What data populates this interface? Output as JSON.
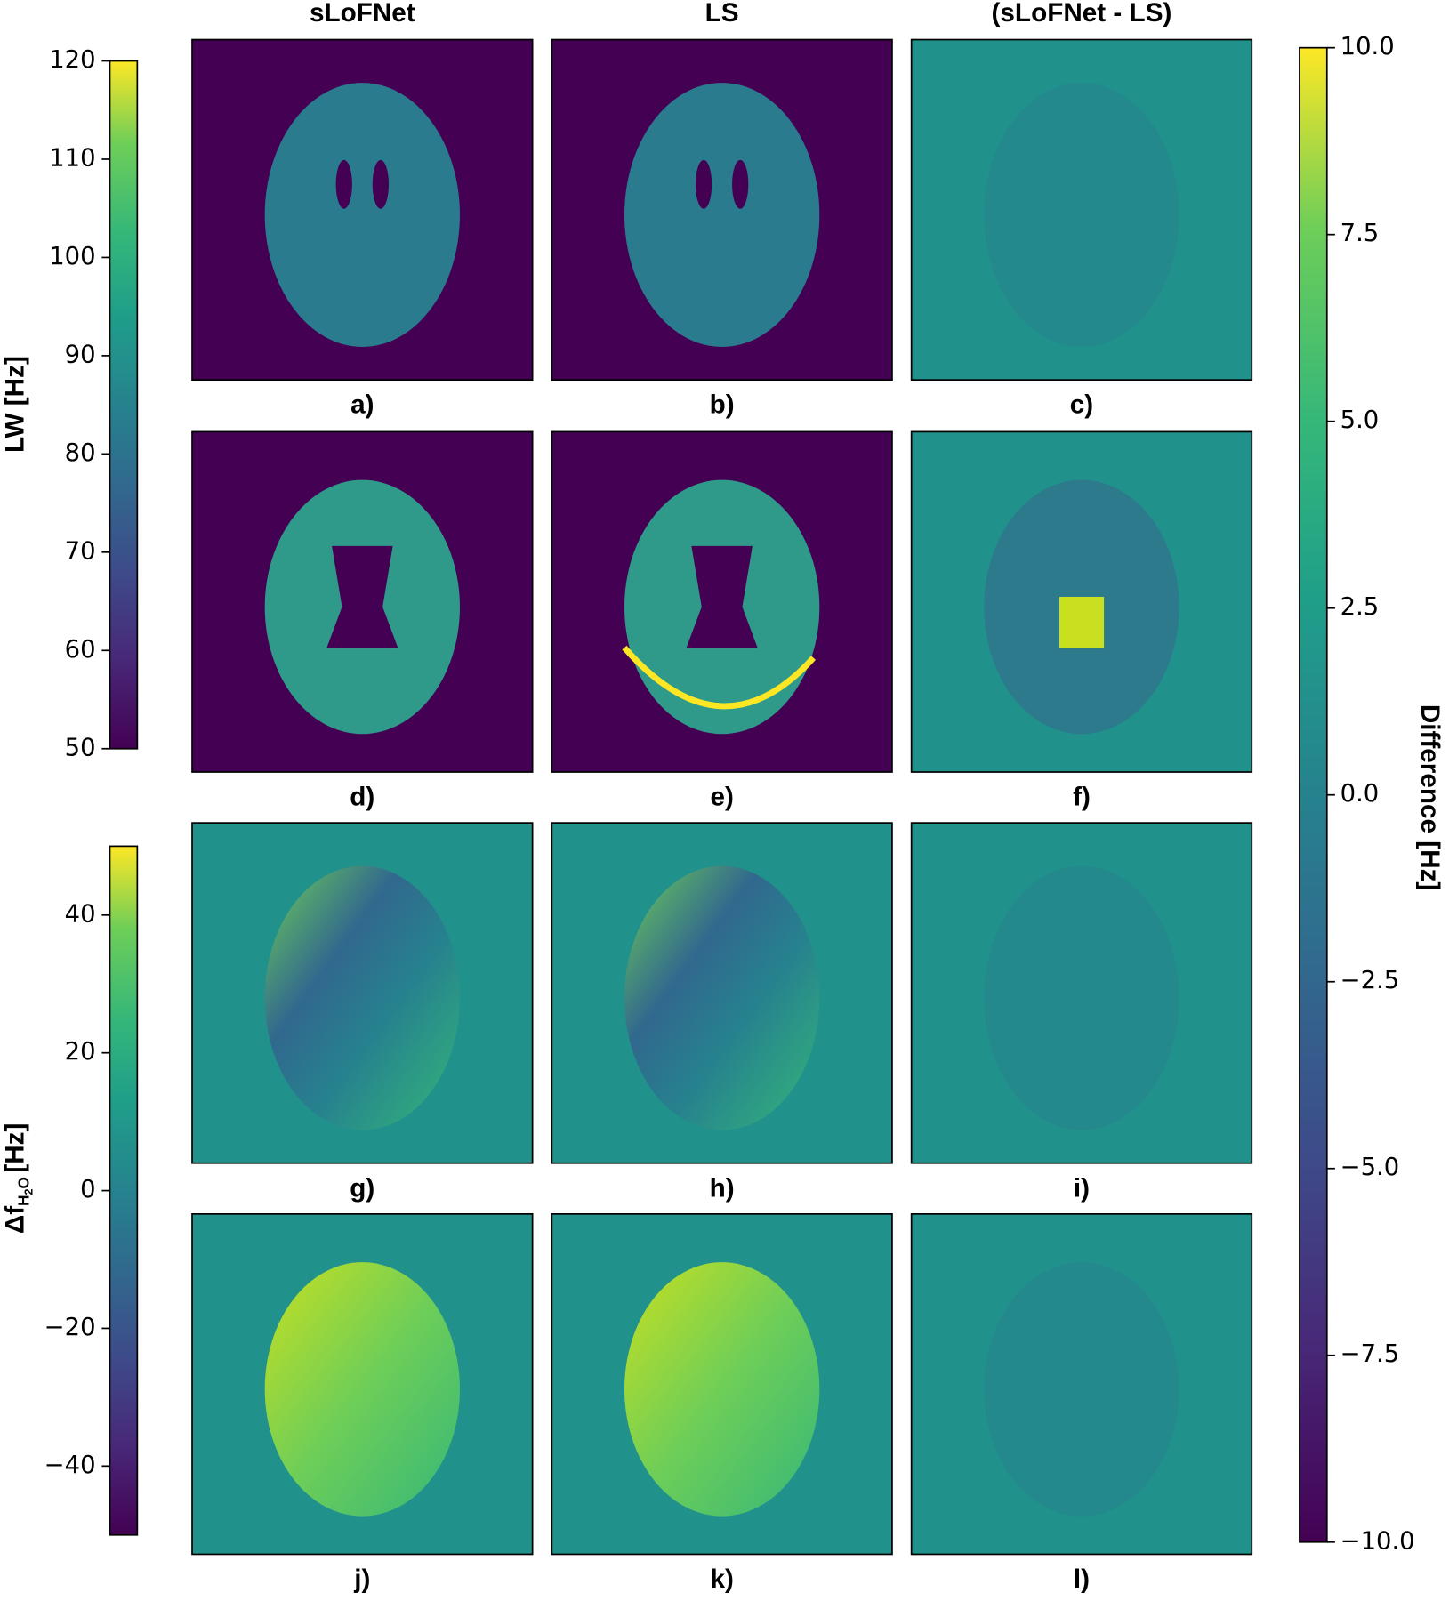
{
  "column_titles": [
    "sLoFNet",
    "LS",
    "(sLoFNet - LS)"
  ],
  "panel_labels": [
    "a)",
    "b)",
    "c)",
    "d)",
    "e)",
    "f)",
    "g)",
    "h)",
    "i)",
    "j)",
    "k)",
    "l)"
  ],
  "colorbars": [
    {
      "label": "LW [Hz]",
      "lim": [
        50,
        120
      ],
      "ticks": [
        120,
        110,
        100,
        90,
        80,
        70,
        60,
        50
      ]
    },
    {
      "label_parts": [
        "Δf",
        "H",
        "2",
        "O",
        "[Hz]"
      ],
      "lim": [
        -50,
        50
      ],
      "ticks": [
        40,
        20,
        0,
        {
          "value": -20,
          "label": "−20"
        },
        {
          "value": -40,
          "label": "−40"
        }
      ]
    },
    {
      "label": "Difference [Hz]",
      "lim": [
        -10,
        10
      ],
      "ticks": [
        {
          "value": 10,
          "label": "10.0"
        },
        {
          "value": 7.5,
          "label": "7.5"
        },
        {
          "value": 5,
          "label": "5.0"
        },
        {
          "value": 2.5,
          "label": "2.5"
        },
        {
          "value": 0,
          "label": "0.0"
        },
        {
          "value": -2.5,
          "label": "−2.5"
        },
        {
          "value": -5,
          "label": "−5.0"
        },
        {
          "value": -7.5,
          "label": "−7.5"
        },
        {
          "value": -10,
          "label": "−10.0"
        }
      ]
    }
  ]
}
